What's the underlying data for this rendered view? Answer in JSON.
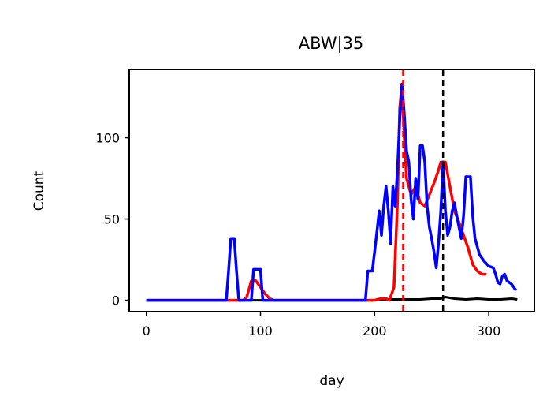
{
  "chart_data": {
    "type": "line",
    "title": "ABW|35",
    "xlabel": "day",
    "ylabel": "Count",
    "xlim": [
      -15,
      340
    ],
    "ylim": [
      -7,
      142
    ],
    "xticks": [
      0,
      100,
      200,
      300
    ],
    "yticks": [
      0,
      50,
      100
    ],
    "grid": false,
    "vlines": [
      {
        "x": 225,
        "color": "#ff0000",
        "style": "dashed"
      },
      {
        "x": 260,
        "color": "#000000",
        "style": "dashed"
      }
    ],
    "series": [
      {
        "color": "#000000",
        "points": [
          [
            0,
            0
          ],
          [
            190,
            0
          ],
          [
            200,
            0
          ],
          [
            210,
            0.5
          ],
          [
            220,
            0.5
          ],
          [
            230,
            0.5
          ],
          [
            240,
            0.5
          ],
          [
            250,
            1
          ],
          [
            258,
            1
          ],
          [
            262,
            2
          ],
          [
            270,
            1
          ],
          [
            280,
            0.5
          ],
          [
            290,
            1
          ],
          [
            300,
            0.5
          ],
          [
            310,
            0.5
          ],
          [
            320,
            1
          ],
          [
            325,
            0.5
          ]
        ]
      },
      {
        "color": "#ff0000",
        "points": [
          [
            0,
            0
          ],
          [
            85,
            0
          ],
          [
            88,
            2
          ],
          [
            92,
            12
          ],
          [
            96,
            12
          ],
          [
            100,
            8
          ],
          [
            104,
            4
          ],
          [
            108,
            1
          ],
          [
            112,
            0
          ],
          [
            200,
            0
          ],
          [
            205,
            1
          ],
          [
            210,
            1
          ],
          [
            213,
            0
          ],
          [
            217,
            8
          ],
          [
            220,
            60
          ],
          [
            222,
            118
          ],
          [
            224,
            133
          ],
          [
            226,
            100
          ],
          [
            228,
            75
          ],
          [
            232,
            65
          ],
          [
            236,
            70
          ],
          [
            240,
            60
          ],
          [
            244,
            58
          ],
          [
            248,
            65
          ],
          [
            252,
            72
          ],
          [
            256,
            80
          ],
          [
            258,
            85
          ],
          [
            262,
            85
          ],
          [
            266,
            70
          ],
          [
            270,
            55
          ],
          [
            274,
            48
          ],
          [
            278,
            40
          ],
          [
            282,
            32
          ],
          [
            286,
            22
          ],
          [
            290,
            18
          ],
          [
            294,
            16
          ],
          [
            298,
            16
          ]
        ]
      },
      {
        "color": "#0000ff",
        "points": [
          [
            0,
            0
          ],
          [
            70,
            0
          ],
          [
            72,
            18
          ],
          [
            74,
            38
          ],
          [
            77,
            38
          ],
          [
            79,
            18
          ],
          [
            81,
            0
          ],
          [
            92,
            0
          ],
          [
            94,
            19
          ],
          [
            100,
            19
          ],
          [
            102,
            0
          ],
          [
            192,
            0
          ],
          [
            194,
            18
          ],
          [
            198,
            18
          ],
          [
            200,
            30
          ],
          [
            202,
            42
          ],
          [
            204,
            55
          ],
          [
            206,
            40
          ],
          [
            208,
            58
          ],
          [
            210,
            70
          ],
          [
            212,
            55
          ],
          [
            214,
            35
          ],
          [
            216,
            70
          ],
          [
            218,
            58
          ],
          [
            220,
            80
          ],
          [
            222,
            110
          ],
          [
            224,
            133
          ],
          [
            226,
            115
          ],
          [
            228,
            92
          ],
          [
            230,
            85
          ],
          [
            232,
            62
          ],
          [
            234,
            50
          ],
          [
            236,
            75
          ],
          [
            238,
            62
          ],
          [
            240,
            95
          ],
          [
            242,
            95
          ],
          [
            244,
            85
          ],
          [
            246,
            58
          ],
          [
            248,
            45
          ],
          [
            250,
            38
          ],
          [
            252,
            30
          ],
          [
            254,
            20
          ],
          [
            256,
            35
          ],
          [
            258,
            55
          ],
          [
            260,
            85
          ],
          [
            262,
            55
          ],
          [
            264,
            40
          ],
          [
            266,
            45
          ],
          [
            268,
            55
          ],
          [
            270,
            60
          ],
          [
            272,
            52
          ],
          [
            274,
            45
          ],
          [
            276,
            38
          ],
          [
            278,
            52
          ],
          [
            280,
            76
          ],
          [
            284,
            76
          ],
          [
            286,
            52
          ],
          [
            288,
            38
          ],
          [
            292,
            28
          ],
          [
            296,
            24
          ],
          [
            300,
            21
          ],
          [
            304,
            20
          ],
          [
            306,
            16
          ],
          [
            308,
            11
          ],
          [
            310,
            10
          ],
          [
            312,
            15
          ],
          [
            314,
            16
          ],
          [
            316,
            12
          ],
          [
            318,
            11
          ],
          [
            320,
            10
          ],
          [
            322,
            8
          ],
          [
            324,
            6
          ]
        ]
      }
    ]
  }
}
